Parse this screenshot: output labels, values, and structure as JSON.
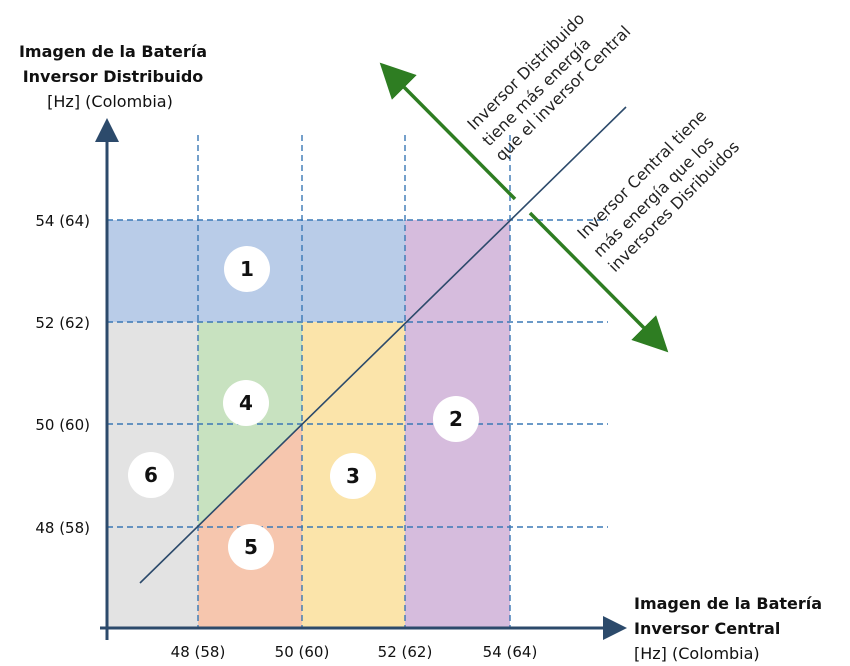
{
  "y_axis": {
    "title": [
      "Imagen de la Batería",
      "Inversor Distribuido"
    ],
    "unit": "[Hz] (Colombia)",
    "ticks": [
      "54 (64)",
      "52 (62)",
      "50 (60)",
      "48 (58)"
    ]
  },
  "x_axis": {
    "title": [
      "Imagen de la Batería",
      "Inversor Central"
    ],
    "unit": "[Hz] (Colombia)",
    "ticks": [
      "48 (58)",
      "50 (60)",
      "52 (62)",
      "54 (64)"
    ]
  },
  "regions": [
    "1",
    "2",
    "3",
    "4",
    "5",
    "6"
  ],
  "annotations": {
    "upper": [
      "Inversor Distribuido",
      "tiene más energía",
      "que el inversor Central"
    ],
    "lower": [
      "Inversor Central tiene",
      "más energía que los",
      "inversores Disribuidos"
    ]
  }
}
